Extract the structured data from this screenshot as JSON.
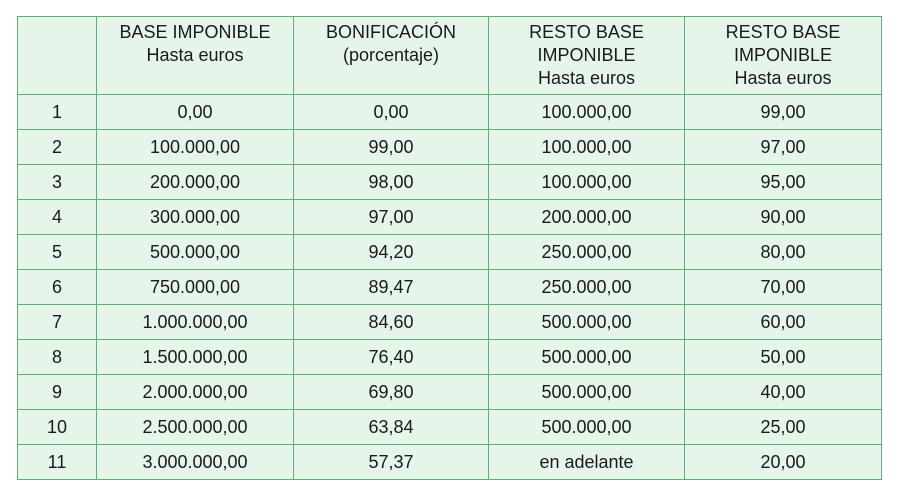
{
  "table": {
    "headers": [
      {
        "lines": []
      },
      {
        "lines": [
          "BASE IMPONIBLE",
          "Hasta euros"
        ]
      },
      {
        "lines": [
          "BONIFICACIÓN",
          "(porcentaje)"
        ]
      },
      {
        "lines": [
          "RESTO BASE",
          "IMPONIBLE",
          "Hasta euros"
        ]
      },
      {
        "lines": [
          "RESTO BASE",
          "IMPONIBLE",
          "Hasta euros"
        ]
      }
    ],
    "rows": [
      [
        "1",
        "0,00",
        "0,00",
        "100.000,00",
        "99,00"
      ],
      [
        "2",
        "100.000,00",
        "99,00",
        "100.000,00",
        "97,00"
      ],
      [
        "3",
        "200.000,00",
        "98,00",
        "100.000,00",
        "95,00"
      ],
      [
        "4",
        "300.000,00",
        "97,00",
        "200.000,00",
        "90,00"
      ],
      [
        "5",
        "500.000,00",
        "94,20",
        "250.000,00",
        "80,00"
      ],
      [
        "6",
        "750.000,00",
        "89,47",
        "250.000,00",
        "70,00"
      ],
      [
        "7",
        "1.000.000,00",
        "84,60",
        "500.000,00",
        "60,00"
      ],
      [
        "8",
        "1.500.000,00",
        "76,40",
        "500.000,00",
        "50,00"
      ],
      [
        "9",
        "2.000.000,00",
        "69,80",
        "500.000,00",
        "40,00"
      ],
      [
        "10",
        "2.500.000,00",
        "63,84",
        "500.000,00",
        "25,00"
      ],
      [
        "11",
        "3.000.000,00",
        "57,37",
        "en adelante",
        "20,00"
      ]
    ]
  },
  "colors": {
    "cell_background": "#e6f5e9",
    "border": "#5fae75",
    "text": "#1a1a1a"
  }
}
